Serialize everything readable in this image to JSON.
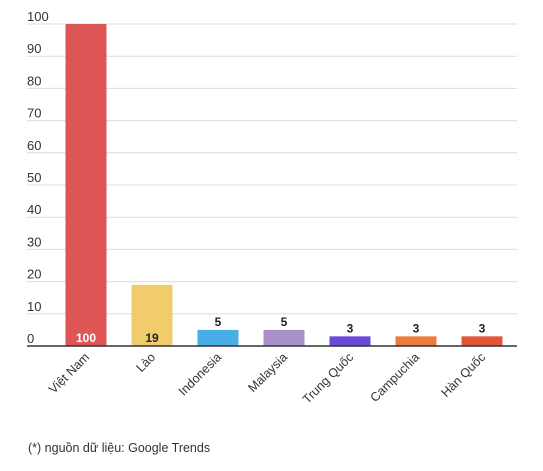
{
  "chart_data": {
    "type": "bar",
    "categories": [
      "Việt Nam",
      "Lào",
      "Indonesia",
      "Malaysia",
      "Trung Quốc",
      "Campuchia",
      "Hàn Quốc"
    ],
    "values": [
      100,
      19,
      5,
      5,
      3,
      3,
      3
    ],
    "colors": [
      "#de5555",
      "#f0cc6a",
      "#4aaee6",
      "#a98fc9",
      "#6a4ad6",
      "#ee7c3e",
      "#e35538"
    ],
    "yticks": [
      0,
      10,
      20,
      30,
      40,
      50,
      60,
      70,
      80,
      90,
      100
    ],
    "ylim": [
      0,
      100
    ],
    "grid": true,
    "title": "",
    "xlabel": "",
    "ylabel": ""
  },
  "footnote": "(*) nguồn dữ liệu: Google Trends"
}
